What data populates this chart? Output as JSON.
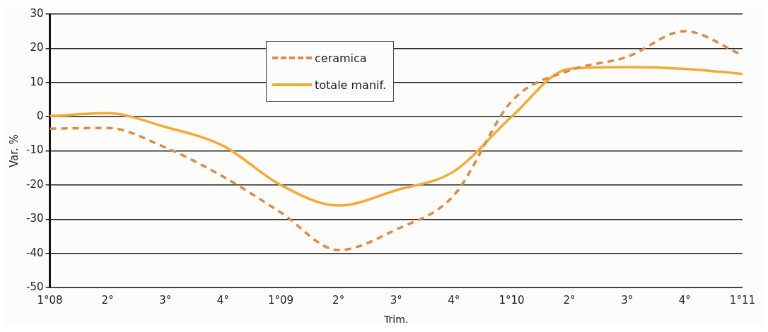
{
  "chart_data": {
    "type": "line",
    "xlabel": "Trim.",
    "ylabel": "Var. %",
    "categories": [
      "1°08",
      "2°",
      "3°",
      "4°",
      "1°09",
      "2°",
      "3°",
      "4°",
      "1°10",
      "2°",
      "3°",
      "4°",
      "1°11"
    ],
    "series": [
      {
        "name": "ceramica",
        "color": "#dd8a45",
        "line_style": "dashed",
        "values": [
          -3.5,
          -3.3,
          -9,
          -17.5,
          -28,
          -39,
          -33,
          -23,
          4.5,
          13.5,
          17.5,
          25,
          18
        ]
      },
      {
        "name": "totale manif.",
        "color": "#f2aa35",
        "line_style": "solid",
        "values": [
          0.2,
          1,
          -3,
          -8.5,
          -20,
          -26,
          -21.5,
          -16,
          0,
          14,
          14.5,
          14,
          12.5
        ]
      }
    ],
    "ylim": [
      -50,
      30
    ],
    "yticks": [
      -50,
      -40,
      -30,
      -20,
      -10,
      0,
      10,
      20,
      30
    ],
    "grid": "y",
    "legend": "top",
    "marker": "none"
  }
}
